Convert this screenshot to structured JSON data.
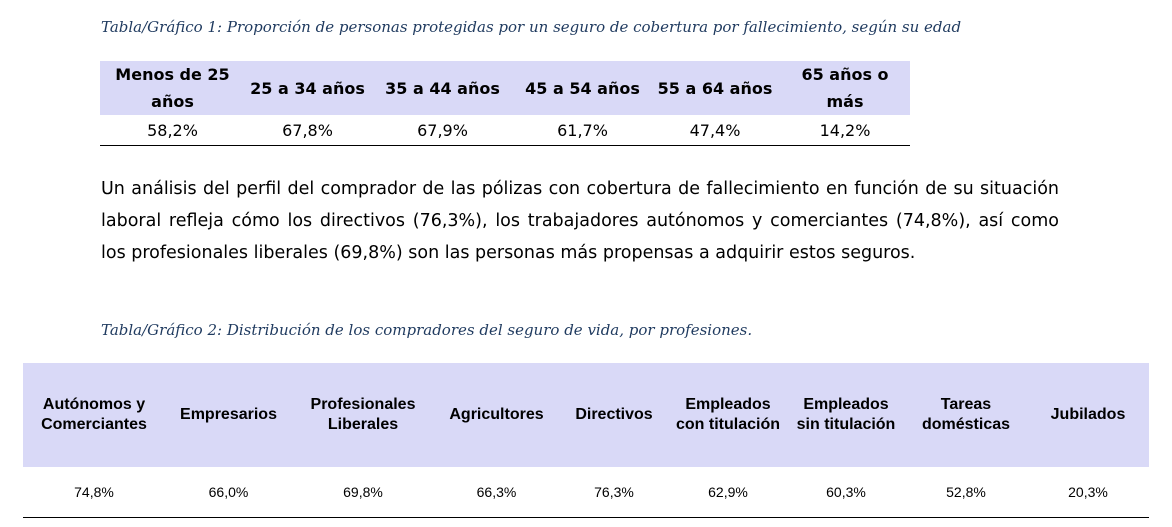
{
  "caption1": "Tabla/Gráfico 1: Proporción de personas protegidas por un seguro de cobertura por fallecimiento, según su edad",
  "table1": {
    "headers": [
      "Menos de 25 años",
      "25 a 34 años",
      "35 a 44 años",
      "45 a 54 años",
      "55 a 64 años",
      "65 años o más"
    ],
    "values": [
      "58,2%",
      "67,8%",
      "67,9%",
      "61,7%",
      "47,4%",
      "14,2%"
    ]
  },
  "paragraph": "Un análisis del perfil del comprador de las pólizas con cobertura de fallecimiento en función de su situación laboral refleja cómo los directivos (76,3%), los trabajadores autónomos y comerciantes (74,8%), así como los profesionales liberales (69,8%) son las personas más propensas a adquirir estos seguros.",
  "caption2": "Tabla/Gráfico 2: Distribución de los compradores del seguro de vida, por profesiones.",
  "table2": {
    "headers": [
      "Autónomos y Comerciantes",
      "Empresarios",
      "Profesionales Liberales",
      "Agricultores",
      "Directivos",
      "Empleados con titulación",
      "Empleados sin titulación",
      "Tareas domésticas",
      "Jubilados"
    ],
    "values": [
      "74,8%",
      "66,0%",
      "69,8%",
      "66,3%",
      "76,3%",
      "62,9%",
      "60,3%",
      "52,8%",
      "20,3%"
    ]
  },
  "colors": {
    "header_background": "#d9d9f7",
    "caption_text": "#1f3a5f"
  }
}
